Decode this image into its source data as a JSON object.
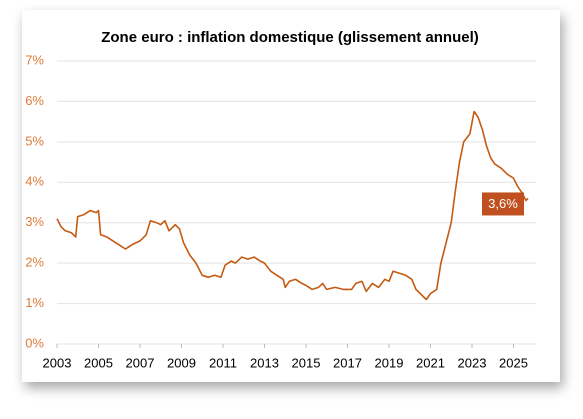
{
  "chart_data": {
    "type": "line",
    "title": "Zone euro : inflation domestique (glissement annuel)",
    "x": [
      2003.0,
      2003.2,
      2003.4,
      2003.7,
      2003.9,
      2004.0,
      2004.3,
      2004.6,
      2004.9,
      2005.0,
      2005.1,
      2005.4,
      2005.7,
      2006.0,
      2006.3,
      2006.6,
      2007.0,
      2007.3,
      2007.5,
      2007.8,
      2008.0,
      2008.2,
      2008.4,
      2008.7,
      2008.9,
      2009.1,
      2009.4,
      2009.7,
      2010.0,
      2010.3,
      2010.6,
      2010.9,
      2011.1,
      2011.4,
      2011.6,
      2011.9,
      2012.2,
      2012.5,
      2012.8,
      2013.0,
      2013.3,
      2013.6,
      2013.9,
      2014.0,
      2014.2,
      2014.5,
      2014.8,
      2015.0,
      2015.3,
      2015.6,
      2015.8,
      2016.0,
      2016.4,
      2016.8,
      2017.2,
      2017.4,
      2017.7,
      2017.9,
      2018.2,
      2018.5,
      2018.8,
      2019.0,
      2019.2,
      2019.5,
      2019.8,
      2020.1,
      2020.3,
      2020.6,
      2020.8,
      2021.0,
      2021.3,
      2021.5,
      2021.8,
      2022.0,
      2022.2,
      2022.4,
      2022.6,
      2022.9,
      2023.1,
      2023.3,
      2023.5,
      2023.7,
      2023.9,
      2024.1,
      2024.4,
      2024.7,
      2025.0,
      2025.2,
      2025.4,
      2025.6,
      2025.7
    ],
    "values": [
      3.1,
      2.9,
      2.8,
      2.75,
      2.65,
      3.15,
      3.2,
      3.3,
      3.25,
      3.3,
      2.7,
      2.65,
      2.55,
      2.45,
      2.35,
      2.45,
      2.55,
      2.7,
      3.05,
      3.0,
      2.95,
      3.05,
      2.8,
      2.95,
      2.85,
      2.5,
      2.2,
      2.0,
      1.7,
      1.65,
      1.7,
      1.65,
      1.95,
      2.05,
      2.0,
      2.15,
      2.1,
      2.15,
      2.05,
      2.0,
      1.8,
      1.7,
      1.6,
      1.4,
      1.55,
      1.6,
      1.5,
      1.45,
      1.35,
      1.4,
      1.5,
      1.35,
      1.4,
      1.35,
      1.35,
      1.5,
      1.55,
      1.3,
      1.5,
      1.4,
      1.6,
      1.55,
      1.8,
      1.75,
      1.7,
      1.6,
      1.35,
      1.2,
      1.1,
      1.25,
      1.35,
      2.0,
      2.6,
      3.0,
      3.8,
      4.5,
      5.0,
      5.2,
      5.75,
      5.6,
      5.3,
      4.9,
      4.6,
      4.45,
      4.35,
      4.2,
      4.1,
      3.9,
      3.75,
      3.55,
      3.6
    ],
    "value_labels": [
      null,
      null,
      null,
      null,
      null,
      null,
      null,
      null,
      null,
      null,
      null,
      null,
      null,
      null,
      null,
      null,
      null,
      null,
      null,
      null,
      null,
      null,
      null,
      null,
      null,
      null,
      null,
      null,
      null,
      null,
      null,
      null,
      null,
      null,
      null,
      null,
      null,
      null,
      null,
      null,
      null,
      null,
      null,
      null,
      null,
      null,
      null,
      null,
      null,
      null,
      null,
      null,
      null,
      null,
      null,
      null,
      null,
      null,
      null,
      null,
      null,
      null,
      null,
      null,
      null,
      null,
      null,
      null,
      null,
      null,
      null,
      null,
      null,
      null,
      null,
      null,
      null,
      null,
      null,
      null,
      null,
      null,
      null,
      null,
      null,
      null,
      null,
      null,
      null,
      null,
      "3,6%"
    ],
    "color": "#c55a11",
    "xlim": [
      2003,
      2025.7
    ],
    "xticks": [
      2003,
      2005,
      2007,
      2009,
      2011,
      2013,
      2015,
      2017,
      2019,
      2021,
      2023,
      2025
    ],
    "ylim": [
      0,
      7
    ],
    "yticks": [
      {
        "value": 0,
        "label": "0%"
      },
      {
        "value": 1,
        "label": "1%"
      },
      {
        "value": 2,
        "label": "2%"
      },
      {
        "value": 3,
        "label": "3%"
      },
      {
        "value": 4,
        "label": "4%"
      },
      {
        "value": 5,
        "label": "5%"
      },
      {
        "value": 6,
        "label": "6%"
      },
      {
        "value": 7,
        "label": "7%"
      }
    ],
    "grid": true
  }
}
